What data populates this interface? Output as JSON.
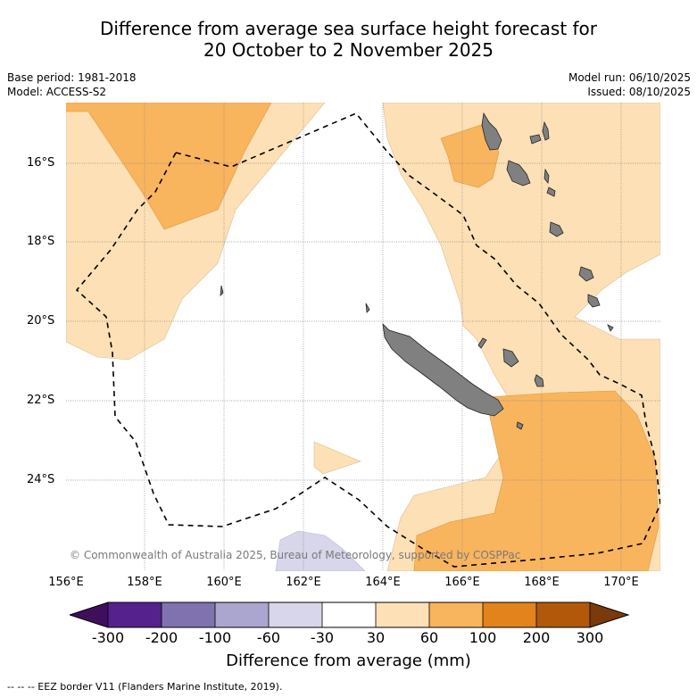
{
  "title": {
    "line1": "Difference from average sea surface height forecast for",
    "line2": "20 October to 2 November 2025"
  },
  "meta": {
    "base_period": "Base period: 1981-2018",
    "model": "Model: ACCESS-S2",
    "model_run": "Model run: 06/10/2025",
    "issued": "Issued: 08/10/2025"
  },
  "map": {
    "copyright": "© Commonwealth of Australia 2025, Bureau of Meteorology, supported by COSPPac",
    "lon_labels": [
      "156°E",
      "158°E",
      "160°E",
      "162°E",
      "164°E",
      "166°E",
      "168°E",
      "170°E"
    ],
    "lat_labels": [
      "16°S",
      "18°S",
      "20°S",
      "22°S",
      "24°S"
    ],
    "colors": {
      "land": "#808080",
      "pos_30_60": "#fde0b5",
      "pos_60_100": "#f9b45e",
      "neg_60_30": "#d7d6ea"
    }
  },
  "colorbar": {
    "ticks": [
      "-300",
      "-200",
      "-100",
      "-60",
      "-30",
      "30",
      "60",
      "100",
      "200",
      "300"
    ],
    "colors": [
      "#3f0f5e",
      "#55218c",
      "#8072af",
      "#aaa6cf",
      "#d7d6ea",
      "#ffffff",
      "#fde0b5",
      "#f9b45e",
      "#e2831c",
      "#b1580a",
      "#7a3a0b"
    ],
    "label": "Difference from average (mm)"
  },
  "footnote": "-- -- -- EEZ border V11 (Flanders Marine Institute, 2019)."
}
